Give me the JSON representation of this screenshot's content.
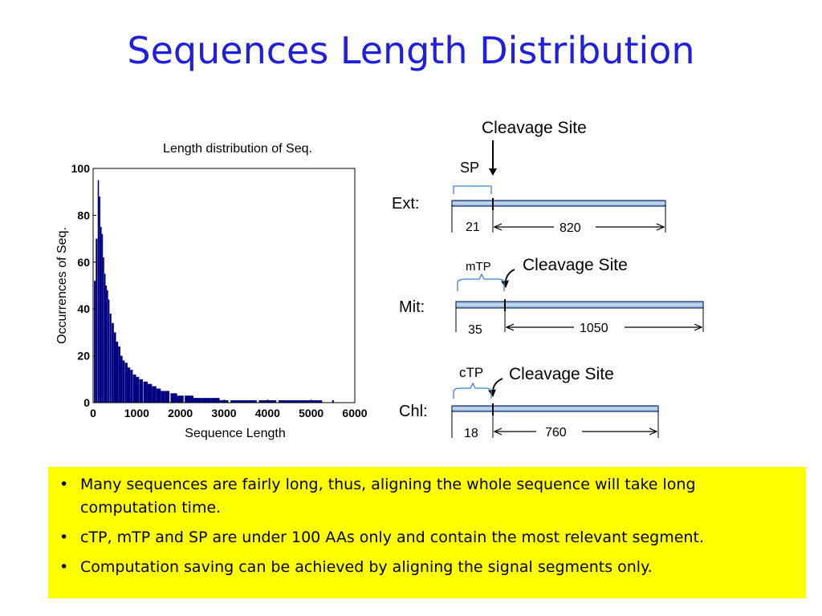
{
  "title": "Sequences Length Distribution",
  "chart_data": {
    "type": "bar",
    "title": "Length distribution of Seq.",
    "xlabel": "Sequence Length",
    "ylabel": "Occurrences of Seq.",
    "xlim": [
      0,
      6000
    ],
    "ylim": [
      0,
      100
    ],
    "xticks": [
      "0",
      "1000",
      "2000",
      "3000",
      "4000",
      "5000",
      "6000"
    ],
    "yticks": [
      "0",
      "20",
      "40",
      "60",
      "80",
      "100"
    ],
    "bar_color": "#000080",
    "x": [
      40,
      80,
      120,
      150,
      180,
      210,
      240,
      270,
      300,
      330,
      360,
      400,
      450,
      500,
      550,
      600,
      650,
      700,
      760,
      820,
      880,
      950,
      1020,
      1100,
      1200,
      1300,
      1400,
      1500,
      1600,
      1700,
      1850,
      2000,
      2200,
      2400,
      2600,
      2800,
      3000,
      3300,
      3600,
      4000,
      4500,
      5000,
      5500
    ],
    "values": [
      52,
      70,
      95,
      88,
      75,
      72,
      62,
      55,
      50,
      48,
      44,
      38,
      34,
      30,
      26,
      24,
      20,
      18,
      17,
      15,
      14,
      12,
      11,
      10,
      9,
      8,
      7,
      6,
      5,
      5,
      4,
      3,
      3,
      2,
      2,
      2,
      1,
      1,
      1,
      1,
      1,
      1,
      1
    ]
  },
  "diagram": {
    "rows": [
      {
        "label": "Ext:",
        "signal": "SP",
        "signal_len": "21",
        "mature_len": "820",
        "cleavage": "Cleavage Site"
      },
      {
        "label": "Mit:",
        "signal": "mTP",
        "signal_len": "35",
        "mature_len": "1050",
        "cleavage": "Cleavage Site"
      },
      {
        "label": "Chl:",
        "signal": "cTP",
        "signal_len": "18",
        "mature_len": "760",
        "cleavage": "Cleavage Site"
      }
    ]
  },
  "bullets": [
    "Many sequences are fairly long, thus, aligning the whole sequence will take long computation time.",
    "cTP, mTP and SP are under 100 AAs only and contain the most relevant segment.",
    "Computation saving can be achieved by aligning the signal segments only."
  ]
}
